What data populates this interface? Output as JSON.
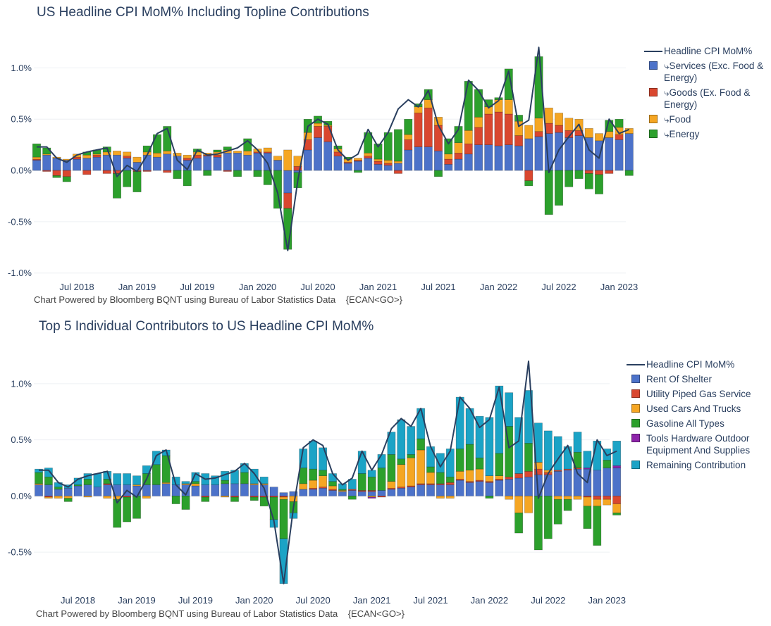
{
  "chart_data": [
    {
      "type": "bar",
      "barmode": "relative",
      "title": "US Headline CPI MoM% Including Topline Contributions",
      "source_note": "Chart Powered by Bloomberg BQNT using Bureau of Labor Statistics Data    {ECAN<GO>}",
      "x_tick_labels": [
        "Jul 2018",
        "Jan 2019",
        "Jul 2019",
        "Jan 2020",
        "Jul 2020",
        "Jan 2021",
        "Jul 2021",
        "Jan 2022",
        "Jul 2022",
        "Jan 2023"
      ],
      "y_tick_labels": [
        "1.0%",
        "0.5%",
        "0.0%",
        "-0.5%",
        "-1.0%"
      ],
      "y_unit": "%",
      "ylim": [
        -1.05,
        1.25
      ],
      "grid": true,
      "legend_position": "right",
      "x": [
        "2018-03",
        "2018-04",
        "2018-05",
        "2018-06",
        "2018-07",
        "2018-08",
        "2018-09",
        "2018-10",
        "2018-11",
        "2018-12",
        "2019-01",
        "2019-02",
        "2019-03",
        "2019-04",
        "2019-05",
        "2019-06",
        "2019-07",
        "2019-08",
        "2019-09",
        "2019-10",
        "2019-11",
        "2019-12",
        "2020-01",
        "2020-02",
        "2020-03",
        "2020-04",
        "2020-05",
        "2020-06",
        "2020-07",
        "2020-08",
        "2020-09",
        "2020-10",
        "2020-11",
        "2020-12",
        "2021-01",
        "2021-02",
        "2021-03",
        "2021-04",
        "2021-05",
        "2021-06",
        "2021-07",
        "2021-08",
        "2021-09",
        "2021-10",
        "2021-11",
        "2021-12",
        "2022-01",
        "2022-02",
        "2022-03",
        "2022-04",
        "2022-05",
        "2022-06",
        "2022-07",
        "2022-08",
        "2022-09",
        "2022-10",
        "2022-11",
        "2022-12",
        "2023-01",
        "2023-02"
      ],
      "line": {
        "name": "Headline CPI MoM%",
        "color": "#2a3f5f",
        "values": [
          0.23,
          0.23,
          0.12,
          0.08,
          0.15,
          0.18,
          0.2,
          0.22,
          -0.06,
          0.05,
          -0.01,
          0.15,
          0.36,
          0.41,
          0.1,
          0.01,
          0.2,
          0.15,
          0.16,
          0.19,
          0.22,
          0.29,
          0.2,
          0.07,
          -0.22,
          -0.78,
          -0.1,
          0.43,
          0.5,
          0.45,
          0.2,
          0.1,
          0.16,
          0.4,
          0.23,
          0.37,
          0.6,
          0.69,
          0.62,
          0.78,
          0.44,
          0.26,
          0.4,
          0.88,
          0.78,
          0.61,
          0.68,
          0.97,
          0.43,
          0.49,
          1.2,
          -0.02,
          0.2,
          0.33,
          0.45,
          0.2,
          0.12,
          0.5,
          0.36,
          0.4
        ]
      },
      "series": [
        {
          "name": "⤷Services (Exc. Food & Energy)",
          "color": "#4c72c9",
          "values": [
            0.1,
            0.15,
            0.12,
            0.1,
            0.11,
            0.12,
            0.13,
            0.15,
            0.15,
            0.12,
            0.08,
            0.15,
            0.13,
            0.16,
            0.14,
            0.1,
            0.12,
            0.14,
            0.13,
            0.17,
            0.17,
            0.15,
            0.17,
            0.17,
            0.1,
            -0.22,
            -0.02,
            0.2,
            0.32,
            0.28,
            0.14,
            0.07,
            0.09,
            0.12,
            0.06,
            0.05,
            0.07,
            0.2,
            0.23,
            0.23,
            0.19,
            0.06,
            0.11,
            0.16,
            0.25,
            0.25,
            0.24,
            0.25,
            0.24,
            0.31,
            0.33,
            0.36,
            0.37,
            0.32,
            0.34,
            0.32,
            0.29,
            0.32,
            0.3,
            0.36
          ]
        },
        {
          "name": "⤷Goods (Ex. Food & Energy)",
          "color": "#d9472f",
          "values": [
            0.01,
            -0.01,
            -0.05,
            -0.06,
            0.02,
            -0.04,
            0.02,
            -0.03,
            -0.03,
            0.02,
            -0.01,
            -0.01,
            0.0,
            -0.02,
            0.0,
            0.02,
            0.03,
            0.01,
            0.02,
            -0.01,
            0.0,
            0.0,
            0.01,
            0.01,
            0.0,
            -0.15,
            0.04,
            0.1,
            0.11,
            0.15,
            0.04,
            0.01,
            0.01,
            0.02,
            0.03,
            0.02,
            -0.03,
            0.1,
            0.33,
            0.38,
            0.25,
            0.05,
            0.06,
            0.1,
            0.17,
            0.3,
            0.33,
            0.3,
            0.1,
            -0.1,
            0.05,
            0.1,
            0.07,
            0.07,
            0.05,
            -0.03,
            -0.04,
            -0.03,
            0.05,
            0.0
          ]
        },
        {
          "name": "⤷Food",
          "color": "#f5a623",
          "values": [
            0.02,
            0.01,
            0.01,
            0.01,
            0.03,
            0.03,
            0.01,
            0.03,
            0.04,
            0.04,
            0.05,
            0.03,
            0.04,
            0.03,
            0.03,
            0.03,
            0.03,
            0.02,
            0.03,
            0.03,
            0.02,
            0.04,
            0.03,
            0.04,
            0.04,
            0.2,
            0.1,
            0.07,
            0.03,
            0.01,
            0.03,
            0.03,
            0.02,
            0.03,
            0.02,
            0.03,
            0.02,
            0.05,
            0.06,
            0.08,
            0.08,
            0.05,
            0.1,
            0.13,
            0.1,
            0.07,
            0.12,
            0.14,
            0.14,
            0.13,
            0.13,
            0.15,
            0.12,
            0.12,
            0.11,
            0.09,
            0.07,
            0.06,
            0.07,
            0.05
          ]
        },
        {
          "name": "⤷Energy",
          "color": "#2ca02c",
          "values": [
            0.13,
            0.06,
            -0.02,
            -0.05,
            0.0,
            0.03,
            0.04,
            0.05,
            -0.24,
            -0.16,
            -0.2,
            0.06,
            0.18,
            0.24,
            -0.08,
            -0.15,
            0.03,
            -0.05,
            0.02,
            0.03,
            -0.06,
            0.12,
            -0.06,
            -0.14,
            -0.37,
            -0.4,
            -0.15,
            0.13,
            0.07,
            0.04,
            0.03,
            0.02,
            -0.02,
            0.2,
            0.15,
            0.27,
            0.31,
            0.15,
            0.03,
            0.1,
            -0.06,
            0.15,
            0.16,
            0.48,
            0.27,
            0.07,
            0.02,
            0.3,
            0.06,
            -0.05,
            0.6,
            -0.43,
            -0.34,
            -0.16,
            -0.08,
            -0.15,
            -0.19,
            0.11,
            0.08,
            -0.05
          ]
        }
      ]
    },
    {
      "type": "bar",
      "barmode": "relative",
      "title": "Top 5 Individual Contributors to US Headline CPI MoM%",
      "source_note": "Chart Powered by Bloomberg BQNT using Bureau of Labor Statistics Data    {ECAN<GO>}",
      "x_tick_labels": [
        "Jul 2018",
        "Jan 2019",
        "Jul 2019",
        "Jan 2020",
        "Jul 2020",
        "Jan 2021",
        "Jul 2021",
        "Jan 2022",
        "Jul 2022",
        "Jan 2023"
      ],
      "y_tick_labels": [
        "1.0%",
        "0.5%",
        "0.0%",
        "-0.5%"
      ],
      "y_unit": "%",
      "ylim": [
        -0.85,
        1.25
      ],
      "grid": true,
      "legend_position": "right",
      "x": [
        "2018-03",
        "2018-04",
        "2018-05",
        "2018-06",
        "2018-07",
        "2018-08",
        "2018-09",
        "2018-10",
        "2018-11",
        "2018-12",
        "2019-01",
        "2019-02",
        "2019-03",
        "2019-04",
        "2019-05",
        "2019-06",
        "2019-07",
        "2019-08",
        "2019-09",
        "2019-10",
        "2019-11",
        "2019-12",
        "2020-01",
        "2020-02",
        "2020-03",
        "2020-04",
        "2020-05",
        "2020-06",
        "2020-07",
        "2020-08",
        "2020-09",
        "2020-10",
        "2020-11",
        "2020-12",
        "2021-01",
        "2021-02",
        "2021-03",
        "2021-04",
        "2021-05",
        "2021-06",
        "2021-07",
        "2021-08",
        "2021-09",
        "2021-10",
        "2021-11",
        "2021-12",
        "2022-01",
        "2022-02",
        "2022-03",
        "2022-04",
        "2022-05",
        "2022-06",
        "2022-07",
        "2022-08",
        "2022-09",
        "2022-10",
        "2022-11",
        "2022-12",
        "2023-01",
        "2023-02"
      ],
      "line": {
        "name": "Headline CPI MoM%",
        "color": "#2a3f5f",
        "values": [
          0.23,
          0.23,
          0.12,
          0.08,
          0.15,
          0.18,
          0.2,
          0.22,
          -0.06,
          0.05,
          -0.01,
          0.15,
          0.36,
          0.41,
          0.1,
          0.01,
          0.2,
          0.15,
          0.16,
          0.19,
          0.22,
          0.29,
          0.2,
          0.07,
          -0.22,
          -0.78,
          -0.1,
          0.43,
          0.5,
          0.45,
          0.2,
          0.1,
          0.16,
          0.4,
          0.23,
          0.37,
          0.6,
          0.69,
          0.62,
          0.78,
          0.44,
          0.26,
          0.4,
          0.88,
          0.78,
          0.61,
          0.68,
          0.97,
          0.43,
          0.49,
          1.2,
          -0.02,
          0.2,
          0.33,
          0.45,
          0.2,
          0.12,
          0.5,
          0.36,
          0.4
        ]
      },
      "series": [
        {
          "name": "Rent Of Shelter",
          "color": "#4c72c9",
          "values": [
            0.1,
            0.1,
            0.06,
            0.07,
            0.09,
            0.1,
            0.08,
            0.1,
            0.1,
            0.1,
            0.09,
            0.1,
            0.1,
            0.11,
            0.1,
            0.1,
            0.09,
            0.1,
            0.1,
            0.11,
            0.11,
            0.11,
            0.1,
            0.1,
            0.08,
            0.03,
            0.04,
            0.06,
            0.06,
            0.07,
            0.05,
            0.04,
            0.05,
            0.04,
            0.04,
            0.05,
            0.06,
            0.07,
            0.08,
            0.1,
            0.1,
            0.1,
            0.1,
            0.14,
            0.12,
            0.13,
            0.12,
            0.14,
            0.15,
            0.16,
            0.17,
            0.19,
            0.19,
            0.22,
            0.23,
            0.24,
            0.24,
            0.23,
            0.25,
            0.25
          ]
        },
        {
          "name": "Utility Piped Gas Service",
          "color": "#d9472f",
          "values": [
            0.0,
            -0.01,
            0.0,
            0.0,
            0.0,
            0.0,
            0.0,
            0.01,
            0.0,
            -0.01,
            0.0,
            0.0,
            0.0,
            0.0,
            0.0,
            0.0,
            0.0,
            -0.01,
            0.0,
            0.0,
            -0.01,
            0.0,
            -0.01,
            -0.01,
            -0.01,
            -0.01,
            0.0,
            0.0,
            0.01,
            0.01,
            0.01,
            0.0,
            0.01,
            0.01,
            0.01,
            -0.01,
            0.01,
            0.01,
            0.01,
            0.01,
            0.01,
            0.01,
            0.02,
            0.01,
            0.01,
            0.01,
            0.01,
            0.01,
            0.02,
            0.04,
            0.05,
            0.05,
            0.02,
            0.01,
            0.01,
            0.01,
            -0.01,
            -0.03,
            -0.03,
            -0.07
          ]
        },
        {
          "name": "Used Cars And Trucks",
          "color": "#f5a623",
          "values": [
            0.01,
            -0.01,
            -0.02,
            -0.02,
            0.0,
            -0.01,
            0.0,
            -0.02,
            -0.03,
            0.0,
            0.01,
            -0.02,
            0.0,
            0.01,
            0.0,
            0.01,
            0.02,
            0.0,
            0.0,
            -0.01,
            0.0,
            0.0,
            0.01,
            0.01,
            0.0,
            -0.02,
            -0.05,
            0.05,
            0.07,
            0.1,
            0.03,
            0.01,
            0.0,
            0.0,
            -0.01,
            0.0,
            0.06,
            0.2,
            0.25,
            0.3,
            0.1,
            -0.02,
            -0.02,
            0.07,
            0.1,
            0.1,
            0.05,
            0.03,
            -0.03,
            -0.15,
            -0.15,
            0.06,
            0.02,
            -0.03,
            -0.03,
            -0.03,
            -0.08,
            -0.06,
            -0.05,
            -0.08
          ]
        },
        {
          "name": "Gasoline All Types",
          "color": "#2ca02c",
          "values": [
            0.1,
            0.07,
            0.02,
            -0.03,
            0.01,
            0.05,
            0.0,
            0.04,
            -0.25,
            -0.22,
            -0.2,
            0.1,
            0.18,
            0.24,
            -0.07,
            -0.12,
            0.02,
            -0.04,
            0.0,
            0.03,
            -0.04,
            0.1,
            -0.03,
            -0.08,
            -0.2,
            -0.35,
            -0.1,
            0.14,
            0.1,
            0.05,
            0.04,
            0.01,
            -0.03,
            0.15,
            0.12,
            0.2,
            0.24,
            0.05,
            0.03,
            0.1,
            0.05,
            0.1,
            0.05,
            0.2,
            0.23,
            0.1,
            -0.02,
            0.2,
            0.45,
            -0.18,
            0.25,
            -0.48,
            -0.38,
            -0.22,
            -0.1,
            0.14,
            -0.2,
            -0.35,
            0.07,
            -0.02
          ]
        },
        {
          "name": "Tools Hardware Outdoor Equipment And Supplies",
          "color": "#8e24aa",
          "values": [
            0.0,
            0.0,
            0.0,
            0.0,
            0.0,
            0.0,
            0.0,
            0.0,
            0.0,
            0.0,
            0.0,
            0.0,
            0.0,
            0.0,
            0.0,
            0.0,
            0.0,
            0.0,
            0.0,
            0.0,
            0.0,
            0.0,
            0.0,
            0.0,
            0.0,
            0.0,
            0.0,
            0.0,
            0.0,
            0.0,
            0.0,
            0.0,
            0.0,
            0.0,
            -0.01,
            0.0,
            0.0,
            0.0,
            0.0,
            0.0,
            0.0,
            0.0,
            0.0,
            0.0,
            0.0,
            0.0,
            0.0,
            0.0,
            0.0,
            0.0,
            0.0,
            0.0,
            0.0,
            0.0,
            0.0,
            0.0,
            0.01,
            0.0,
            0.0,
            0.02
          ]
        },
        {
          "name": "Remaining Contribution",
          "color": "#1ba3c6",
          "values": [
            0.03,
            0.08,
            0.04,
            0.03,
            0.06,
            0.05,
            0.12,
            0.07,
            0.1,
            0.1,
            0.08,
            0.07,
            0.12,
            0.05,
            0.07,
            0.02,
            0.08,
            0.1,
            0.08,
            0.08,
            0.12,
            0.08,
            0.13,
            0.06,
            -0.07,
            -0.4,
            -0.05,
            0.17,
            0.25,
            0.2,
            0.07,
            0.05,
            0.09,
            0.2,
            0.06,
            0.12,
            0.2,
            0.35,
            0.25,
            0.27,
            0.18,
            0.17,
            0.25,
            0.46,
            0.32,
            0.37,
            0.52,
            0.6,
            0.3,
            0.5,
            0.47,
            0.35,
            0.35,
            0.3,
            0.2,
            0.18,
            0.15,
            0.26,
            0.1,
            0.22
          ]
        }
      ]
    }
  ]
}
